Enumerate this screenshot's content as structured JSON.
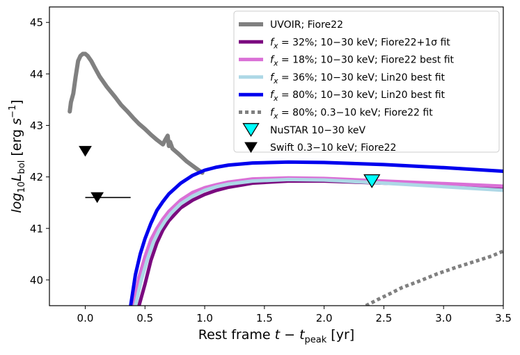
{
  "chart_data": {
    "type": "line",
    "xlabel": "Rest frame t − t_peak [yr]",
    "ylabel": "log10 L_bol [erg s^-1]",
    "xlim": [
      -0.3,
      3.5
    ],
    "ylim": [
      39.5,
      45.3
    ],
    "xticks": [
      0.0,
      0.5,
      1.0,
      1.5,
      2.0,
      2.5,
      3.0,
      3.5
    ],
    "xtick_labels": [
      "0.0",
      "0.5",
      "1.0",
      "1.5",
      "2.0",
      "2.5",
      "3.0",
      "3.5"
    ],
    "yticks": [
      40,
      41,
      42,
      43,
      44,
      45
    ],
    "ytick_labels": [
      "40",
      "41",
      "42",
      "43",
      "44",
      "45"
    ],
    "legend_position": "top-right",
    "series": [
      {
        "id": "uvoir",
        "name": "UVOIR; Fiore22",
        "color": "#808080",
        "style": "solid",
        "width": 6,
        "x": [
          -0.13,
          -0.12,
          -0.1,
          -0.08,
          -0.06,
          -0.04,
          -0.02,
          0.0,
          0.02,
          0.05,
          0.08,
          0.12,
          0.18,
          0.25,
          0.3,
          0.35,
          0.4,
          0.45,
          0.5,
          0.55,
          0.6,
          0.65,
          0.67,
          0.69,
          0.7,
          0.71,
          0.73,
          0.78,
          0.85,
          0.92,
          0.98
        ],
        "y": [
          43.27,
          43.45,
          43.62,
          43.95,
          44.25,
          44.35,
          44.39,
          44.39,
          44.35,
          44.25,
          44.12,
          43.95,
          43.75,
          43.55,
          43.4,
          43.28,
          43.15,
          43.03,
          42.93,
          42.82,
          42.72,
          42.63,
          42.72,
          42.8,
          42.6,
          42.68,
          42.55,
          42.45,
          42.3,
          42.18,
          42.08
        ]
      },
      {
        "id": "fx32",
        "name": "f_x = 32%; 10−30 keV; Fiore22+1σ fit",
        "label_rest": " = 32%; 10−30 keV; Fiore22+1σ fit",
        "color": "#7b0a7f",
        "style": "solid",
        "width": 5,
        "x": [
          0.45,
          0.5,
          0.55,
          0.6,
          0.65,
          0.7,
          0.8,
          0.9,
          1.0,
          1.1,
          1.2,
          1.4,
          1.7,
          2.0,
          2.5,
          3.0,
          3.5
        ],
        "y": [
          39.5,
          39.92,
          40.38,
          40.72,
          40.97,
          41.15,
          41.4,
          41.55,
          41.66,
          41.74,
          41.8,
          41.88,
          41.92,
          41.92,
          41.88,
          41.84,
          41.79
        ]
      },
      {
        "id": "fx18",
        "name": "f_x = 18%; 10−30 keV; Fiore22 best fit",
        "label_rest": " = 18%; 10−30 keV; Fiore22 best fit",
        "color": "#da70d6",
        "style": "solid",
        "width": 5,
        "x": [
          0.4,
          0.45,
          0.5,
          0.55,
          0.6,
          0.65,
          0.7,
          0.8,
          0.9,
          1.0,
          1.1,
          1.2,
          1.4,
          1.7,
          2.0,
          2.5,
          3.0,
          3.5
        ],
        "y": [
          39.5,
          40.05,
          40.45,
          40.78,
          41.0,
          41.18,
          41.33,
          41.55,
          41.7,
          41.79,
          41.85,
          41.9,
          41.96,
          41.98,
          41.97,
          41.92,
          41.87,
          41.82
        ]
      },
      {
        "id": "fx36",
        "name": "f_x = 36%; 10−30 keV; Lin20 best fit",
        "label_rest": " = 36%; 10−30 keV; Lin20 best fit",
        "color": "#add8e6",
        "style": "solid",
        "width": 5,
        "x": [
          0.42,
          0.47,
          0.52,
          0.57,
          0.62,
          0.67,
          0.72,
          0.8,
          0.9,
          1.0,
          1.1,
          1.2,
          1.4,
          1.7,
          2.0,
          2.5,
          3.0,
          3.5
        ],
        "y": [
          39.5,
          40.0,
          40.4,
          40.73,
          40.97,
          41.15,
          41.3,
          41.48,
          41.63,
          41.74,
          41.81,
          41.86,
          41.92,
          41.95,
          41.94,
          41.88,
          41.81,
          41.74
        ]
      },
      {
        "id": "fx80h",
        "name": "f_x = 80%; 10−30 keV; Lin20 best  fit",
        "label_rest": " = 80%; 10−30 keV; Lin20 best  fit",
        "color": "#0000ee",
        "style": "solid",
        "width": 5,
        "x": [
          0.38,
          0.42,
          0.46,
          0.5,
          0.55,
          0.6,
          0.65,
          0.7,
          0.8,
          0.9,
          1.0,
          1.1,
          1.2,
          1.4,
          1.7,
          2.0,
          2.5,
          3.0,
          3.5
        ],
        "y": [
          39.5,
          40.1,
          40.5,
          40.8,
          41.1,
          41.35,
          41.52,
          41.67,
          41.88,
          42.03,
          42.13,
          42.19,
          42.23,
          42.27,
          42.29,
          42.28,
          42.24,
          42.18,
          42.11
        ]
      },
      {
        "id": "fx80s",
        "name": "f_x = 80%; 0.3−10 keV; Fiore22 fit",
        "label_rest": " = 80%; 0.3−10 keV; Fiore22 fit",
        "color": "#808080",
        "style": "dotted",
        "width": 5,
        "x": [
          2.35,
          2.45,
          2.55,
          2.65,
          2.8,
          2.95,
          3.1,
          3.25,
          3.4,
          3.5
        ],
        "y": [
          39.5,
          39.62,
          39.73,
          39.85,
          39.98,
          40.12,
          40.24,
          40.35,
          40.46,
          40.56
        ]
      }
    ],
    "markers": [
      {
        "id": "nustar",
        "name": "NuSTAR 10−30 keV",
        "shape": "triangle-down",
        "color": "#00ffff",
        "edge": "#000000",
        "x": [
          2.4
        ],
        "y": [
          41.92
        ]
      },
      {
        "id": "swift",
        "name": "Swift 0.3−10 keV; Fiore22",
        "shape": "triangle-down",
        "color": "#000000",
        "x": [
          0.0,
          0.1
        ],
        "y": [
          42.5,
          41.6
        ],
        "xerr": [
          null,
          [
            -0.1,
            0.28
          ]
        ]
      }
    ]
  }
}
